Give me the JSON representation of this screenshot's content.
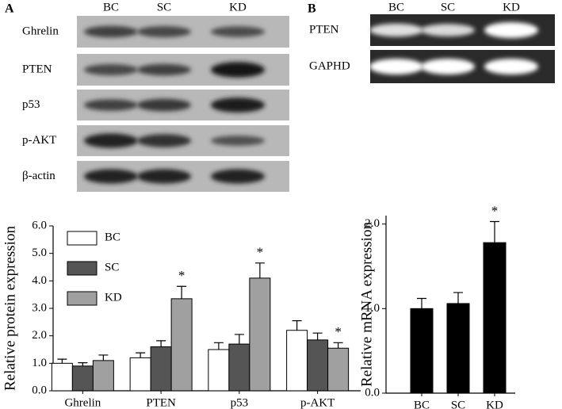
{
  "panel_labels": [
    "A",
    "B"
  ],
  "blot_a": {
    "columns": [
      "BC",
      "SC",
      "KD"
    ],
    "rows": [
      "Ghrelin",
      "PTEN",
      "p53",
      "p-AKT",
      "β-actin"
    ]
  },
  "blot_b": {
    "columns": [
      "BC",
      "SC",
      "KD"
    ],
    "rows": [
      "PTEN",
      "GAPHD"
    ]
  },
  "chart_data": [
    {
      "type": "bar",
      "ylabel": "Relative protein expression",
      "categories": [
        "Ghrelin",
        "PTEN",
        "p53",
        "p-AKT"
      ],
      "series": [
        {
          "name": "BC",
          "color": "#ffffff",
          "values": [
            1.0,
            1.2,
            1.5,
            2.2
          ],
          "errors": [
            0.15,
            0.18,
            0.25,
            0.35
          ]
        },
        {
          "name": "SC",
          "color": "#555555",
          "values": [
            0.9,
            1.6,
            1.7,
            1.85
          ],
          "errors": [
            0.12,
            0.22,
            0.35,
            0.25
          ]
        },
        {
          "name": "KD",
          "color": "#a0a0a0",
          "values": [
            1.1,
            3.35,
            4.1,
            1.55
          ],
          "errors": [
            0.2,
            0.45,
            0.55,
            0.2
          ]
        }
      ],
      "ylim": [
        0,
        6
      ],
      "yticks": [
        {
          "value": 0,
          "label": "0.0"
        },
        {
          "value": 1,
          "label": "1.0"
        },
        {
          "value": 2,
          "label": "2.0"
        },
        {
          "value": 3,
          "label": "3.0"
        },
        {
          "value": 4,
          "label": "4.0"
        },
        {
          "value": 5,
          "label": "5.0"
        },
        {
          "value": 6,
          "label": "6.0"
        }
      ],
      "annotations": [
        {
          "text": "*",
          "series": 2,
          "category": 1
        },
        {
          "text": "*",
          "series": 2,
          "category": 2
        },
        {
          "text": "*",
          "series": 2,
          "category": 3
        }
      ]
    },
    {
      "type": "bar",
      "ylabel": "Relative mRNA expression",
      "categories": [
        "BC",
        "SC",
        "KD"
      ],
      "color": "#000000",
      "values": [
        1.0,
        1.06,
        1.78
      ],
      "errors": [
        0.12,
        0.13,
        0.25
      ],
      "ylim": [
        0,
        2.1
      ],
      "yticks": [
        {
          "value": 0,
          "label": "0.0"
        },
        {
          "value": 1,
          "label": "1.0"
        },
        {
          "value": 2,
          "label": "2.0"
        }
      ],
      "annotations": [
        {
          "text": "*",
          "category": 2
        }
      ]
    }
  ]
}
